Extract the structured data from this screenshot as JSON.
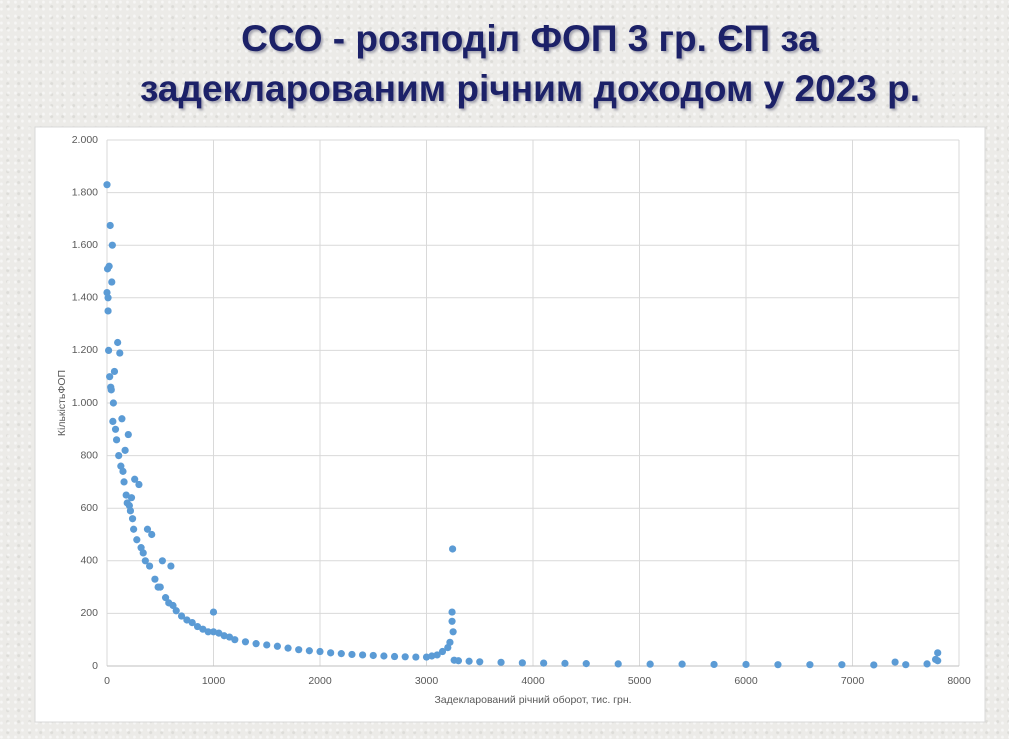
{
  "chart_data": {
    "type": "scatter",
    "title": "ССО - розподіл ФОП 3 гр. ЄП за задекларованим річним доходом у 2023 р.",
    "x_label": "Задекларований річний оборот, тис. грн.",
    "y_label": "КількістьФОП",
    "color": "#5b9bd5",
    "grid": true,
    "xlim": [
      0,
      8000
    ],
    "xticks": [
      0,
      1000,
      2000,
      3000,
      4000,
      5000,
      6000,
      7000,
      8000
    ],
    "ylim": [
      0,
      2000
    ],
    "yticks": [
      0,
      200,
      400,
      600,
      800,
      {
        "value": 1000,
        "label": "1.000"
      },
      {
        "value": 1200,
        "label": "1.200"
      },
      {
        "value": 1400,
        "label": "1.400"
      },
      {
        "value": 1600,
        "label": "1.600"
      },
      {
        "value": 1800,
        "label": "1.800"
      },
      {
        "value": 2000,
        "label": "2.000"
      }
    ],
    "x": [
      0,
      0,
      5,
      10,
      10,
      15,
      20,
      25,
      30,
      35,
      40,
      45,
      50,
      55,
      60,
      70,
      80,
      90,
      100,
      110,
      120,
      130,
      140,
      150,
      160,
      170,
      180,
      190,
      200,
      210,
      220,
      230,
      240,
      250,
      260,
      280,
      300,
      320,
      340,
      360,
      380,
      400,
      420,
      450,
      480,
      500,
      520,
      550,
      580,
      600,
      620,
      650,
      700,
      750,
      800,
      850,
      900,
      950,
      1000,
      1000,
      1050,
      1100,
      1150,
      1200,
      1300,
      1400,
      1500,
      1600,
      1700,
      1800,
      1900,
      2000,
      2100,
      2200,
      2300,
      2400,
      2500,
      2600,
      2700,
      2800,
      2900,
      3000,
      3050,
      3100,
      3150,
      3200,
      3220,
      3240,
      3240,
      3245,
      3250,
      3260,
      3300,
      3400,
      3500,
      3700,
      3900,
      4100,
      4300,
      4500,
      4800,
      5100,
      5400,
      5700,
      6000,
      6300,
      6600,
      6900,
      7200,
      7400,
      7500,
      7700,
      7780,
      7800,
      7800
    ],
    "values": [
      1830,
      1420,
      1510,
      1400,
      1350,
      1200,
      1520,
      1100,
      1675,
      1060,
      1050,
      1460,
      1600,
      930,
      1000,
      1120,
      900,
      860,
      1230,
      800,
      1190,
      760,
      940,
      740,
      700,
      820,
      650,
      620,
      880,
      610,
      590,
      640,
      560,
      520,
      710,
      480,
      690,
      450,
      430,
      400,
      520,
      380,
      500,
      330,
      300,
      300,
      400,
      260,
      240,
      380,
      230,
      210,
      190,
      175,
      165,
      150,
      140,
      130,
      130,
      205,
      125,
      115,
      110,
      100,
      92,
      85,
      80,
      75,
      68,
      62,
      58,
      55,
      50,
      47,
      44,
      42,
      40,
      38,
      36,
      35,
      34,
      34,
      38,
      42,
      55,
      70,
      90,
      170,
      205,
      445,
      130,
      22,
      20,
      18,
      16,
      14,
      12,
      11,
      10,
      9,
      8,
      7,
      7,
      6,
      6,
      5,
      5,
      5,
      4,
      15,
      5,
      8,
      25,
      50,
      20
    ]
  }
}
